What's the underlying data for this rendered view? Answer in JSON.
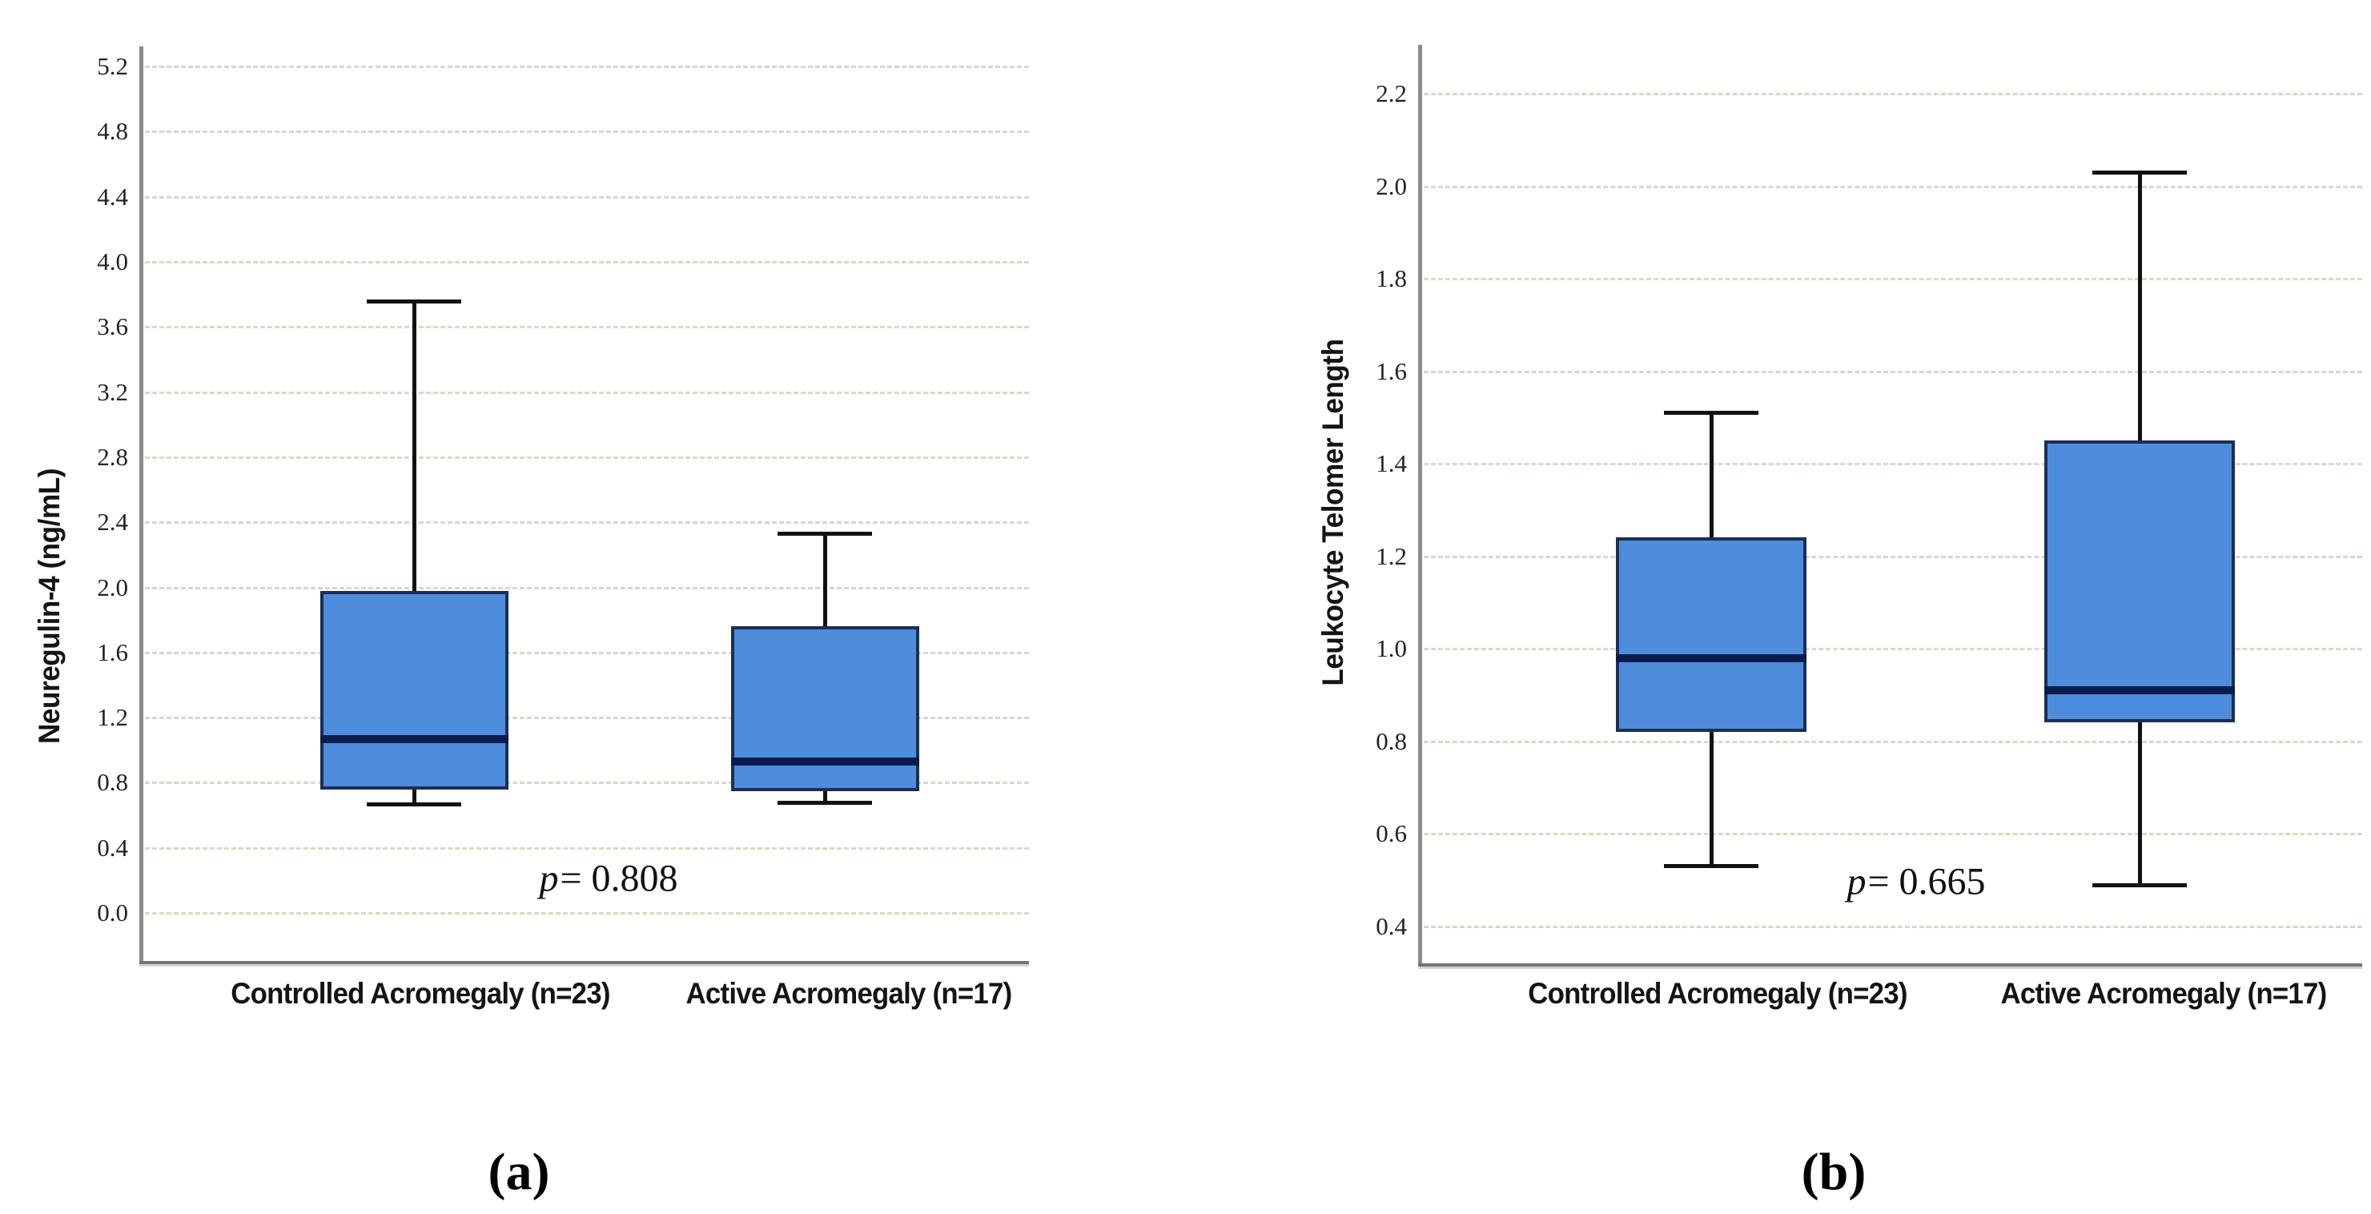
{
  "chart_data": [
    {
      "type": "boxplot",
      "panel_caption": "(a)",
      "ylabel": "Neuregulin-4 (ng/mL)",
      "yticks": [
        0.0,
        0.4,
        0.8,
        1.2,
        1.6,
        2.0,
        2.4,
        2.8,
        3.2,
        3.6,
        4.0,
        4.4,
        4.8,
        5.2
      ],
      "ylim": [
        -0.3,
        5.32
      ],
      "grid": "dotted-horizontal",
      "legend": null,
      "categories": [
        "Controlled Acromegaly (n=23)",
        "Active Acromegaly (n=17)"
      ],
      "p_label": {
        "symbol": "p",
        "rest": "= 0.808"
      },
      "series": [
        {
          "category": "Controlled Acromegaly (n=23)",
          "n": 23,
          "whisker_low": 0.67,
          "q1": 0.76,
          "median": 1.07,
          "q3": 1.98,
          "whisker_high": 3.76
        },
        {
          "category": "Active Acromegaly (n=17)",
          "n": 17,
          "whisker_low": 0.68,
          "q1": 0.75,
          "median": 0.93,
          "q3": 1.76,
          "whisker_high": 2.33
        }
      ]
    },
    {
      "type": "boxplot",
      "panel_caption": "(b)",
      "ylabel": "Leukocyte Telomer Length",
      "yticks": [
        0.4,
        0.6,
        0.8,
        1.0,
        1.2,
        1.4,
        1.6,
        1.8,
        2.0,
        2.2
      ],
      "ylim": [
        0.32,
        2.31
      ],
      "grid": "dotted-horizontal",
      "legend": null,
      "categories": [
        "Controlled Acromegaly (n=23)",
        "Active Acromegaly (n=17)"
      ],
      "p_label": {
        "symbol": "p",
        "rest": "= 0.665"
      },
      "series": [
        {
          "category": "Controlled Acromegaly (n=23)",
          "n": 23,
          "whisker_low": 0.53,
          "q1": 0.82,
          "median": 0.98,
          "q3": 1.24,
          "whisker_high": 1.51
        },
        {
          "category": "Active Acromegaly (n=17)",
          "n": 17,
          "whisker_low": 0.49,
          "q1": 0.84,
          "median": 0.91,
          "q3": 1.45,
          "whisker_high": 2.03
        }
      ]
    }
  ],
  "colors": {
    "box_fill": "#4E8CDC",
    "box_border": "#1C2E55",
    "median": "#0A1C4D",
    "whisker": "#121212",
    "gridline": "#DCD7C8",
    "axis": "#8B8B8B",
    "axis_under": "#D2D2D2",
    "text": "#1A1A1A",
    "background": "#FFFFFF"
  }
}
